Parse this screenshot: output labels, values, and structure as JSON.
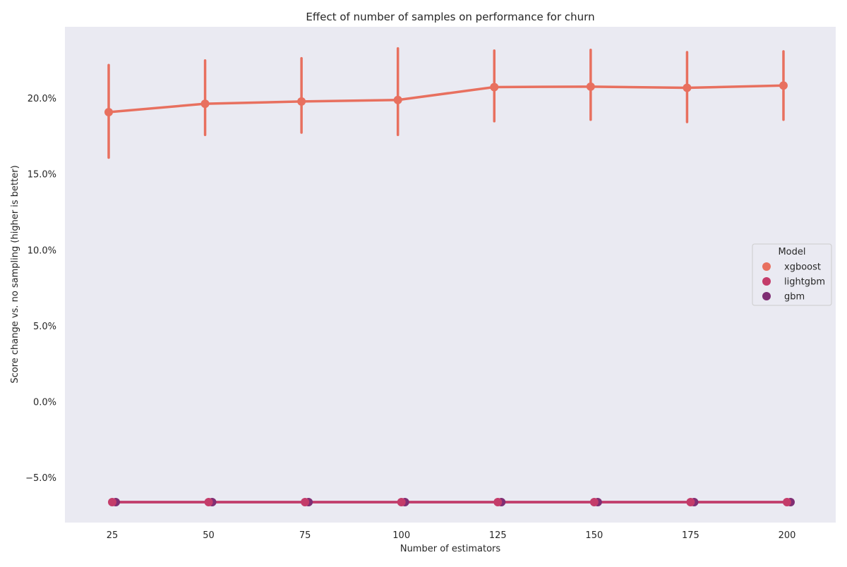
{
  "chart_data": {
    "type": "line",
    "title": "Effect of number of samples on performance for churn",
    "xlabel": "Number of estimators",
    "ylabel": "Score change vs. no sampling (higher is better)",
    "categories": [
      "25",
      "50",
      "75",
      "100",
      "125",
      "150",
      "175",
      "200"
    ],
    "yticks": [
      -5.0,
      0.0,
      5.0,
      10.0,
      15.0,
      20.0
    ],
    "ytick_labels": [
      "−5.0%",
      "0.0%",
      "5.0%",
      "10.0%",
      "15.0%",
      "20.0%"
    ],
    "ylim": [
      -8.0,
      24.5
    ],
    "legend": {
      "title": "Model",
      "placement": "center-right"
    },
    "grid": false,
    "series": [
      {
        "name": "xgboost",
        "color": "#e8705f",
        "values": [
          19.1,
          19.65,
          19.8,
          19.9,
          20.75,
          20.78,
          20.7,
          20.85
        ],
        "ci_low": [
          16.1,
          17.6,
          17.75,
          17.6,
          18.5,
          18.6,
          18.45,
          18.6
        ],
        "ci_high": [
          22.2,
          22.5,
          22.65,
          23.3,
          23.15,
          23.2,
          23.05,
          23.1
        ]
      },
      {
        "name": "lightgbm",
        "color": "#c43c6a",
        "values": [
          -6.6,
          -6.6,
          -6.6,
          -6.6,
          -6.6,
          -6.6,
          -6.6,
          -6.6
        ]
      },
      {
        "name": "gbm",
        "color": "#7f2e74",
        "values": [
          -6.6,
          -6.6,
          -6.6,
          -6.6,
          -6.6,
          -6.6,
          -6.6,
          -6.6
        ]
      }
    ]
  }
}
